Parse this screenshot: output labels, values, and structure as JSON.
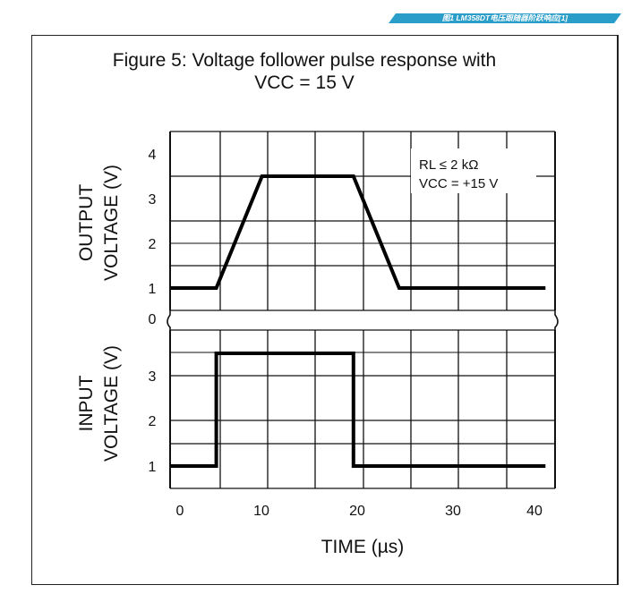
{
  "tag_label": "图1 LM358DT电压跟随器阶跃响应[1]",
  "chart_data": {
    "type": "line",
    "title": "Figure 5: Voltage follower pulse response with\nVCC = 15 V",
    "xlabel": "TIME (µs)",
    "x_ticks": [
      "0",
      "10",
      "20",
      "30",
      "40"
    ],
    "xlim": [
      0,
      40
    ],
    "grid": true,
    "panels": [
      {
        "ylabel_lines": [
          "OUTPUT",
          "VOLTAGE (V)"
        ],
        "y_ticks": [
          "1",
          "2",
          "3",
          "4"
        ],
        "ylim": [
          0.5,
          4.5
        ],
        "annotation": [
          "RL ≤ 2 kΩ",
          "VCC = +15 V"
        ],
        "series": [
          {
            "x": [
              -1,
              4,
              9,
              19,
              24,
              40
            ],
            "y": [
              1,
              1,
              3.5,
              3.5,
              1,
              1
            ]
          }
        ]
      },
      {
        "ylabel_lines": [
          "INPUT",
          "VOLTAGE (V)"
        ],
        "y_ticks": [
          "1",
          "2",
          "3"
        ],
        "ylim": [
          0.5,
          3.5
        ],
        "series": [
          {
            "x": [
              -1,
              4,
              4,
              19,
              19,
              40
            ],
            "y": [
              1,
              1,
              3.5,
              3.5,
              1,
              1
            ]
          }
        ]
      }
    ],
    "break_label": "0"
  }
}
